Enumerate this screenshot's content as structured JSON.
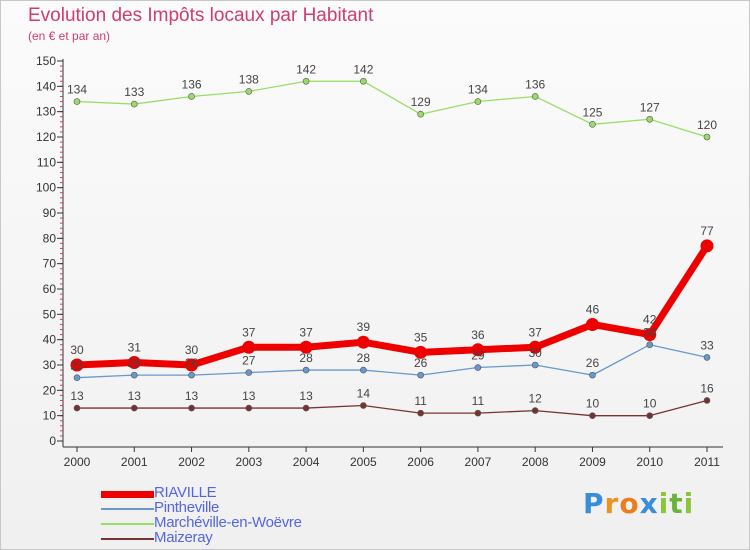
{
  "header": {
    "title": "Evolution des Impôts locaux par Habitant",
    "subtitle": "(en € et par an)"
  },
  "chart_data": {
    "type": "line",
    "title": "Evolution des Impôts locaux par Habitant",
    "subtitle": "(en € et par an)",
    "xlabel": "",
    "ylabel": "",
    "ylim": [
      0,
      150
    ],
    "yticks": [
      0,
      10,
      20,
      30,
      40,
      50,
      60,
      70,
      80,
      90,
      100,
      110,
      120,
      130,
      140,
      150
    ],
    "categories": [
      "2000",
      "2001",
      "2002",
      "2003",
      "2004",
      "2005",
      "2006",
      "2007",
      "2008",
      "2009",
      "2010",
      "2011"
    ],
    "grid": false,
    "legend_position": "bottom-left",
    "series": [
      {
        "name": "RIAVILLE",
        "color": "#ee0000",
        "values": [
          30,
          31,
          30,
          37,
          37,
          39,
          35,
          36,
          37,
          46,
          42,
          77
        ]
      },
      {
        "name": "Pintheville",
        "color": "#6699cc",
        "values": [
          25,
          26,
          26,
          27,
          28,
          28,
          26,
          29,
          30,
          26,
          38,
          33
        ]
      },
      {
        "name": "Marchéville-en-Woëvre",
        "color": "#99dd66",
        "values": [
          134,
          133,
          136,
          138,
          142,
          142,
          129,
          134,
          136,
          125,
          127,
          120
        ]
      },
      {
        "name": "Maizeray",
        "color": "#773333",
        "values": [
          13,
          13,
          13,
          13,
          13,
          14,
          11,
          11,
          12,
          10,
          10,
          16
        ]
      }
    ]
  },
  "brand": {
    "letters": [
      "P",
      "r",
      "o",
      "x",
      "i",
      "t",
      "i"
    ],
    "colors": [
      "#3a8ed8",
      "#e89420",
      "#ea7d1f",
      "#3a8ed8",
      "#8cc43a",
      "#6cb33e",
      "#8cc43a"
    ]
  }
}
